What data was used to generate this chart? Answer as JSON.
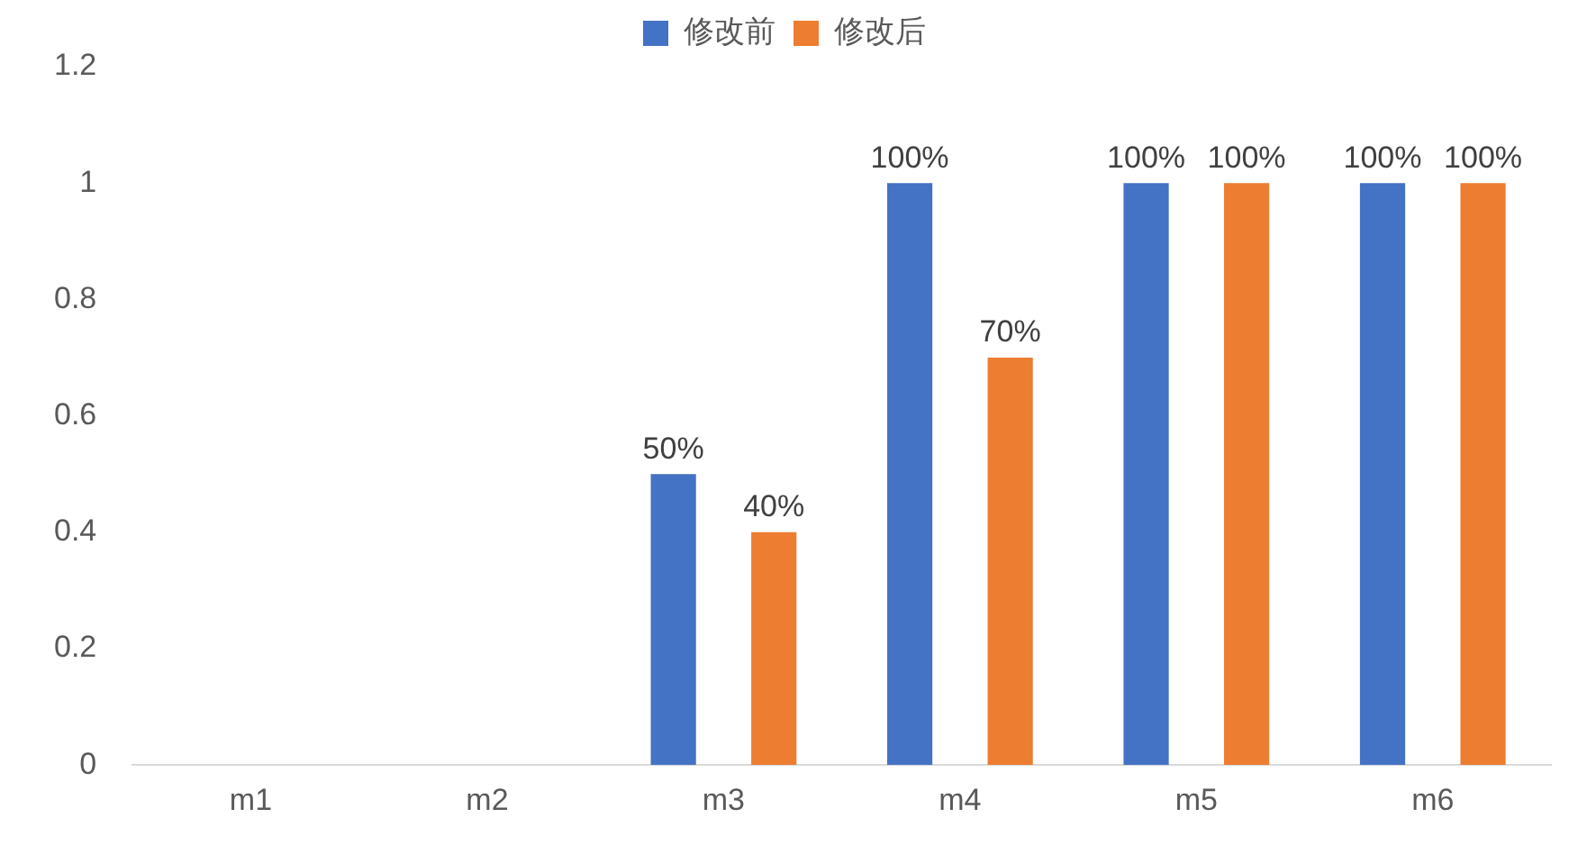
{
  "chart_data": {
    "type": "bar",
    "categories": [
      "m1",
      "m2",
      "m3",
      "m4",
      "m5",
      "m6"
    ],
    "series": [
      {
        "name": "修改前",
        "color": "#4472c4",
        "values": [
          null,
          null,
          0.5,
          1,
          1,
          1
        ],
        "value_labels": [
          null,
          null,
          "50%",
          "100%",
          "100%",
          "100%"
        ]
      },
      {
        "name": "修改后",
        "color": "#ed7d31",
        "values": [
          null,
          null,
          0.4,
          0.7,
          1,
          1
        ],
        "value_labels": [
          null,
          null,
          "40%",
          "70%",
          "100%",
          "100%"
        ]
      }
    ],
    "ylim": [
      0,
      1.2
    ],
    "yticks": [
      0,
      0.2,
      0.4,
      0.6,
      0.8,
      1,
      1.2
    ],
    "grid": false,
    "legend": "top"
  }
}
